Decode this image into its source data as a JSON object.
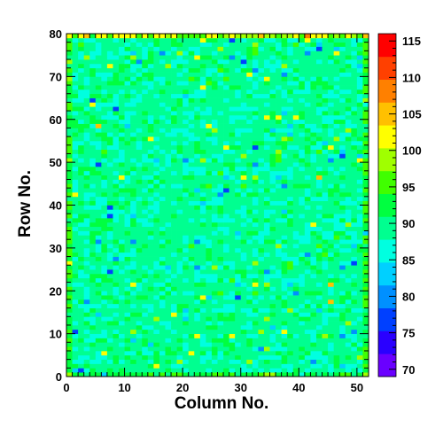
{
  "chart_data": {
    "type": "heatmap",
    "title": "",
    "xlabel": "Column No.",
    "ylabel": "Row No.",
    "xlim": [
      0,
      52
    ],
    "ylim": [
      0,
      80
    ],
    "x_ticks": [
      "0",
      "10",
      "20",
      "30",
      "40",
      "50"
    ],
    "y_ticks": [
      "0",
      "10",
      "20",
      "30",
      "40",
      "50",
      "60",
      "70",
      "80"
    ],
    "n_columns": 52,
    "n_rows": 80,
    "z_range": [
      69,
      116
    ],
    "colorbar_ticks": [
      "70",
      "75",
      "80",
      "85",
      "90",
      "95",
      "100",
      "105",
      "110",
      "115"
    ],
    "colormap": [
      "#6a00ff",
      "#2a00ff",
      "#0040ff",
      "#0090ff",
      "#00d0ff",
      "#00ffe0",
      "#00ff90",
      "#00ff40",
      "#40ff00",
      "#a0ff00",
      "#ffff00",
      "#ffc000",
      "#ff8000",
      "#ff4000",
      "#ff0000"
    ],
    "typical_value": 89,
    "notes": "Pixel occupancy map; values fluctuate around ~86-93 with sparse outliers up to ~110 near the top edge."
  }
}
